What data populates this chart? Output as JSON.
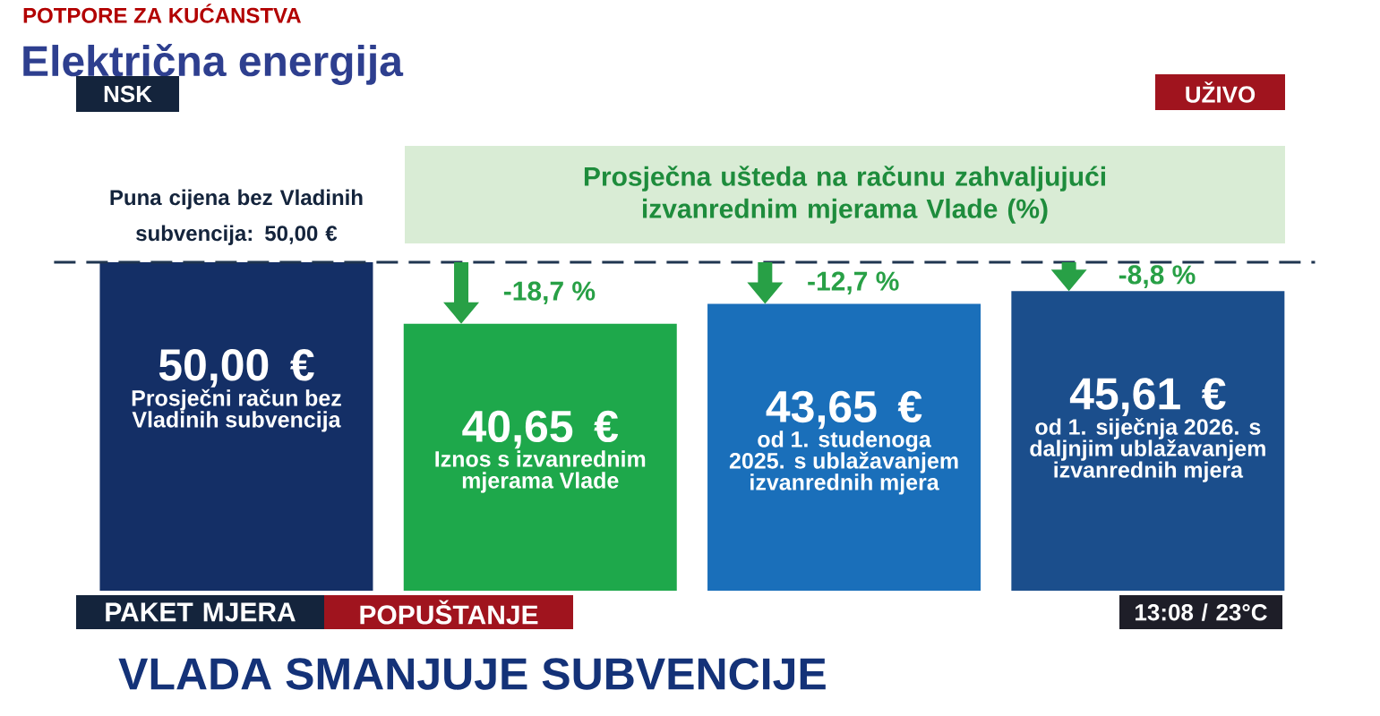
{
  "chart_data": {
    "type": "bar",
    "subtitle": "POTPORE ZA KUĆANSTVA",
    "title": "Električna energija",
    "categories": [
      "Prosječni račun bez Vladinih subvencija",
      "Iznos s izvanrednim mjerama Vlade",
      "od 1. studenoga 2025. s ublažavanjem izvanrednih mjera",
      "od 1. siječnja 2026. s daljnjim ublažavanjem izvanrednih mjera"
    ],
    "values": [
      50.0,
      40.65,
      43.65,
      45.61
    ],
    "value_labels": [
      "50,00 €",
      "40,65 €",
      "43,65 €",
      "45,61 €"
    ],
    "colors": [
      "#142f66",
      "#1ea84b",
      "#1a6fba",
      "#1b4e8c"
    ],
    "ref_lines": [
      {
        "axis": "y",
        "value": 50,
        "label": "Puna cijena bez Vladinih subvencija: 50,00 €",
        "color": "#1f3550",
        "line_style": "dashed"
      }
    ],
    "annotations": [
      {
        "text": "-18,7 %",
        "x": "Iznos s izvanrednim mjerama Vlade",
        "y": 40.65
      },
      {
        "text": "-12,7 %",
        "x": "od 1. studenoga 2025. s ublažavanjem izvanrednih mjera",
        "y": 43.65
      },
      {
        "text": "-8,8 %",
        "x": "od 1. siječnja 2026. s daljnjim ublažavanjem izvanrednih mjera",
        "y": 45.61
      },
      "Prosječna ušteda na računu zahvaljujući izvanrednim mjerama Vlade (%)",
      "NSK",
      "UŽIVO",
      "PAKET MJERA",
      "POPUŠTANJE",
      "VLADA SMANJUJE SUBVENCIJE",
      "13:08 / 23°C"
    ]
  }
}
